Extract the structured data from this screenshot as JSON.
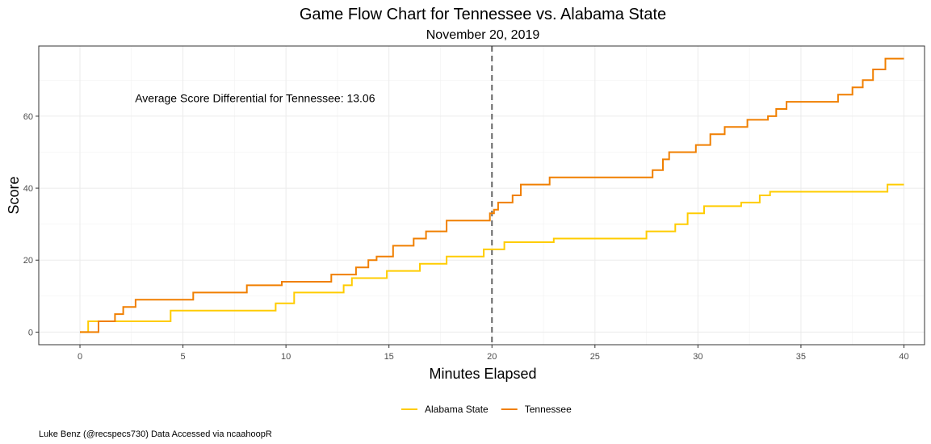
{
  "chart_data": {
    "type": "line",
    "line_style": "step",
    "title": "Game Flow Chart for Tennessee vs. Alabama State",
    "subtitle": "November 20, 2019",
    "xlabel": "Minutes Elapsed",
    "ylabel": "Score",
    "xlim": [
      -2,
      41
    ],
    "ylim": [
      -3.5,
      79.5
    ],
    "x_ticks": [
      0,
      5,
      10,
      15,
      20,
      25,
      30,
      35,
      40
    ],
    "y_ticks": [
      0,
      20,
      40,
      60
    ],
    "grid": true,
    "halftime_line": {
      "x": 20,
      "style": "dashed",
      "color": "#666666"
    },
    "annotation": {
      "text": "Average Score Differential for Tennessee: 13.06",
      "x": 8.5,
      "y": 65
    },
    "legend": {
      "position": "bottom"
    },
    "caption": "Luke Benz (@recspecs730) Data Accessed via ncaahoopR",
    "series": [
      {
        "name": "Alabama State",
        "color": "#FFCC00",
        "points": [
          [
            0,
            0
          ],
          [
            0.4,
            3
          ],
          [
            4.4,
            6
          ],
          [
            9.5,
            8
          ],
          [
            10.4,
            11
          ],
          [
            12.8,
            13
          ],
          [
            13.2,
            15
          ],
          [
            14.9,
            17
          ],
          [
            16.5,
            19
          ],
          [
            17.8,
            21
          ],
          [
            19.6,
            23
          ],
          [
            20.6,
            25
          ],
          [
            23,
            26
          ],
          [
            27.5,
            28
          ],
          [
            28.9,
            30
          ],
          [
            29.5,
            33
          ],
          [
            30.3,
            35
          ],
          [
            32.1,
            36
          ],
          [
            33,
            38
          ],
          [
            33.5,
            39
          ],
          [
            39.2,
            41
          ],
          [
            40,
            41
          ]
        ]
      },
      {
        "name": "Tennessee",
        "color": "#F07F00",
        "points": [
          [
            0,
            0
          ],
          [
            0.9,
            3
          ],
          [
            1.7,
            5
          ],
          [
            2.1,
            7
          ],
          [
            2.7,
            9
          ],
          [
            5.5,
            11
          ],
          [
            8.1,
            13
          ],
          [
            9.8,
            14
          ],
          [
            12.2,
            16
          ],
          [
            13.4,
            18
          ],
          [
            14,
            20
          ],
          [
            14.4,
            21
          ],
          [
            15.2,
            24
          ],
          [
            16.2,
            26
          ],
          [
            16.8,
            28
          ],
          [
            17.8,
            31
          ],
          [
            19.9,
            33
          ],
          [
            20.1,
            34
          ],
          [
            20.3,
            36
          ],
          [
            21,
            38
          ],
          [
            21.4,
            41
          ],
          [
            22.8,
            43
          ],
          [
            27.8,
            45
          ],
          [
            28.3,
            48
          ],
          [
            28.6,
            50
          ],
          [
            29.9,
            52
          ],
          [
            30.6,
            55
          ],
          [
            31.3,
            57
          ],
          [
            32.4,
            59
          ],
          [
            33.4,
            60
          ],
          [
            33.8,
            62
          ],
          [
            34.3,
            64
          ],
          [
            36.8,
            66
          ],
          [
            37.5,
            68
          ],
          [
            38,
            70
          ],
          [
            38.5,
            73
          ],
          [
            39.1,
            76
          ],
          [
            40,
            76
          ]
        ]
      }
    ]
  }
}
